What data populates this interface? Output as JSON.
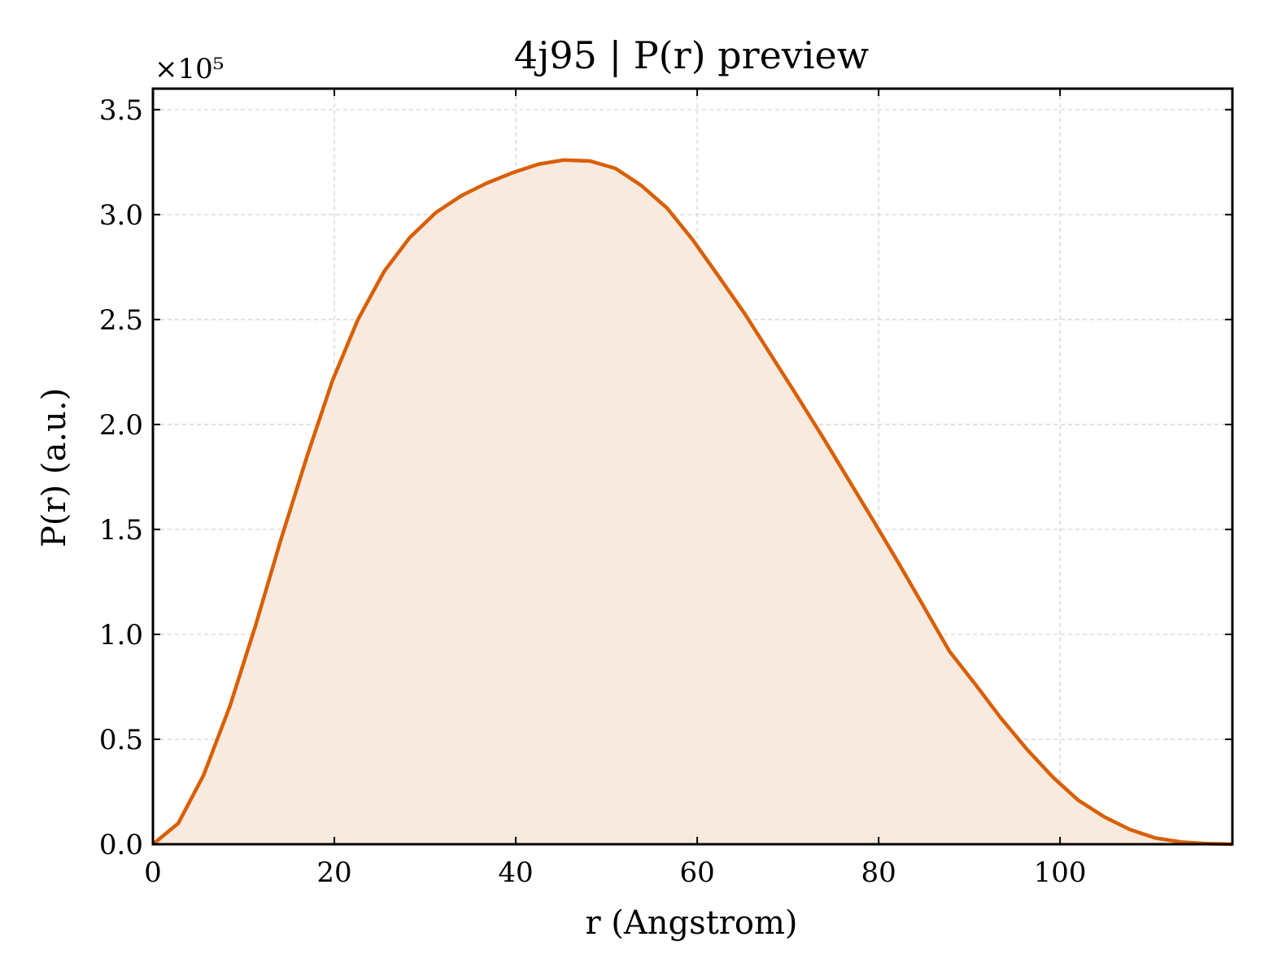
{
  "chart_data": {
    "type": "area",
    "title": "4j95 | P(r) preview",
    "xlabel": "r (Angstrom)",
    "ylabel": "P(r) (a.u.)",
    "y_offset_label": "×10⁵",
    "y_scale": 100000,
    "xlim": [
      0,
      119
    ],
    "ylim": [
      0,
      3.6
    ],
    "x_ticks": [
      0,
      20,
      40,
      60,
      80,
      100
    ],
    "x_tick_labels": [
      "0",
      "20",
      "40",
      "60",
      "80",
      "100"
    ],
    "y_ticks": [
      0,
      0.5,
      1.0,
      1.5,
      2.0,
      2.5,
      3.0,
      3.5
    ],
    "y_tick_labels": [
      "0.0",
      "0.5",
      "1.0",
      "1.5",
      "2.0",
      "2.5",
      "3.0",
      "3.5"
    ],
    "grid": true,
    "line_color": "#d95f02",
    "fill_color": "#f9eadf",
    "series": [
      {
        "x": [
          0,
          2.8,
          5.6,
          8.5,
          11.3,
          14.1,
          17.0,
          19.8,
          22.6,
          25.5,
          28.3,
          31.2,
          34.0,
          36.8,
          39.7,
          42.5,
          45.3,
          48.2,
          51.0,
          53.8,
          56.7,
          59.5,
          62.3,
          65.2,
          68.0,
          70.8,
          73.7,
          76.5,
          79.3,
          82.2,
          85.0,
          87.8,
          90.7,
          93.5,
          96.4,
          99.2,
          102.0,
          104.9,
          107.7,
          110.5,
          113.4,
          116.2,
          119.0
        ],
        "y": [
          0.0,
          0.1,
          0.33,
          0.66,
          1.04,
          1.45,
          1.85,
          2.21,
          2.5,
          2.73,
          2.89,
          3.01,
          3.09,
          3.15,
          3.2,
          3.24,
          3.26,
          3.255,
          3.22,
          3.14,
          3.03,
          2.88,
          2.71,
          2.53,
          2.34,
          2.15,
          1.95,
          1.75,
          1.55,
          1.34,
          1.13,
          0.92,
          0.76,
          0.6,
          0.45,
          0.32,
          0.21,
          0.13,
          0.07,
          0.03,
          0.01,
          0.003,
          0.0
        ]
      }
    ]
  }
}
